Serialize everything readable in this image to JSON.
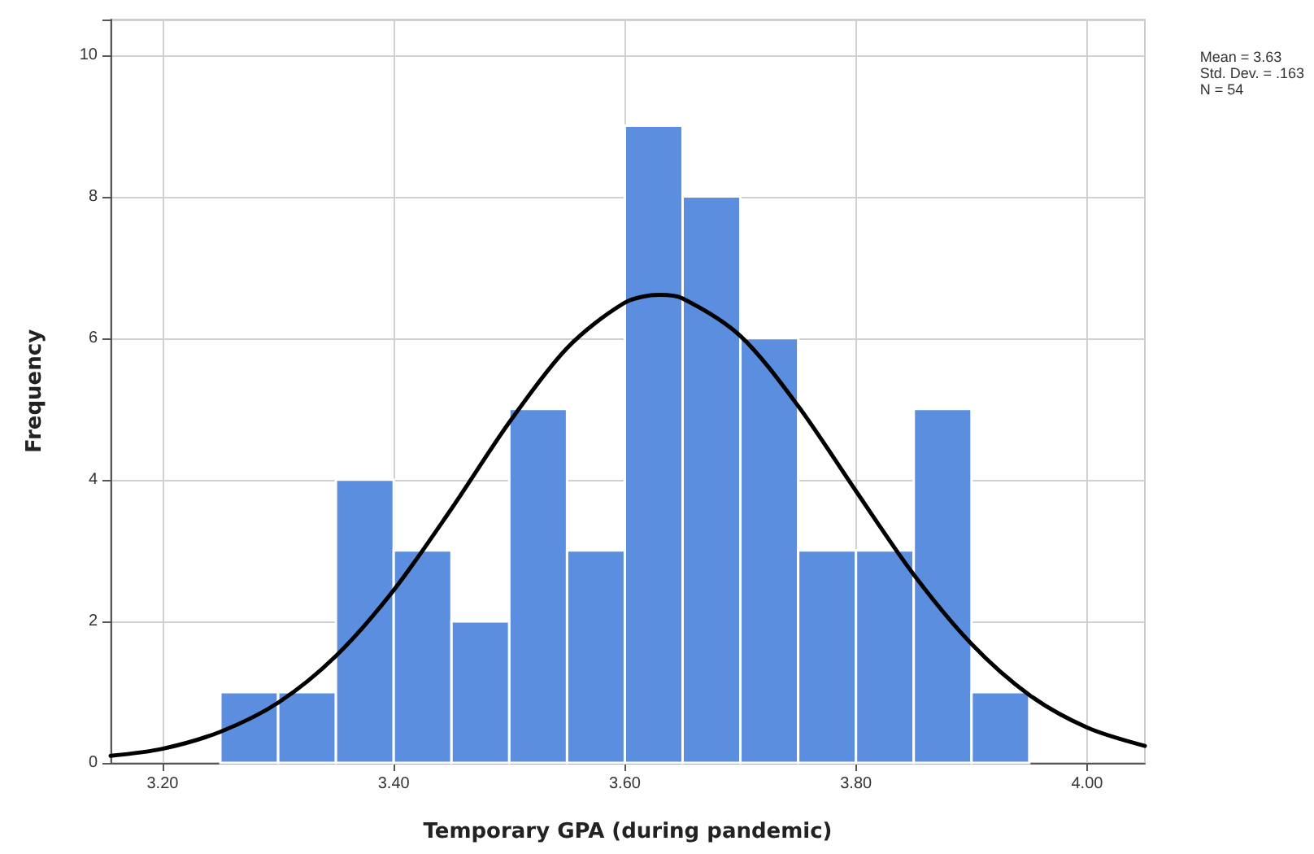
{
  "chart_data": {
    "type": "histogram",
    "xlabel": "Temporary GPA (during pandemic)",
    "ylabel": "Frequency",
    "bins": [
      3.25,
      3.3,
      3.35,
      3.4,
      3.45,
      3.5,
      3.55,
      3.6,
      3.65,
      3.7,
      3.75,
      3.8,
      3.85,
      3.9,
      3.95
    ],
    "values": [
      1,
      1,
      4,
      3,
      2,
      5,
      3,
      9,
      8,
      6,
      3,
      3,
      5,
      1
    ],
    "color": "#5b8ede",
    "series": [
      {
        "type": "line",
        "color": "#000000",
        "x": [
          3.155,
          3.2,
          3.25,
          3.3,
          3.35,
          3.4,
          3.45,
          3.5,
          3.55,
          3.6,
          3.63,
          3.65,
          3.7,
          3.75,
          3.8,
          3.85,
          3.9,
          3.95,
          4.0,
          4.05
        ],
        "values": [
          0.1,
          0.2,
          0.44,
          0.85,
          1.51,
          2.44,
          3.59,
          4.81,
          5.86,
          6.5,
          6.61,
          6.56,
          6.03,
          5.04,
          3.84,
          2.66,
          1.68,
          0.96,
          0.5,
          0.24
        ]
      }
    ],
    "xlim": [
      3.155,
      4.05
    ],
    "xticks": [
      {
        "value": 3.2,
        "label": "3.20"
      },
      {
        "value": 3.4,
        "label": "3.40"
      },
      {
        "value": 3.6,
        "label": "3.60"
      },
      {
        "value": 3.8,
        "label": "3.80"
      },
      {
        "value": 4.0,
        "label": "4.00"
      }
    ],
    "ylim": [
      0,
      10.5
    ],
    "yticks": [
      0,
      2,
      4,
      6,
      8,
      10
    ],
    "grid": true,
    "marker": "none",
    "line_style": "solid",
    "annotations": [
      "Mean = 3.63\nStd. Dev. = .163\nN = 54"
    ]
  }
}
